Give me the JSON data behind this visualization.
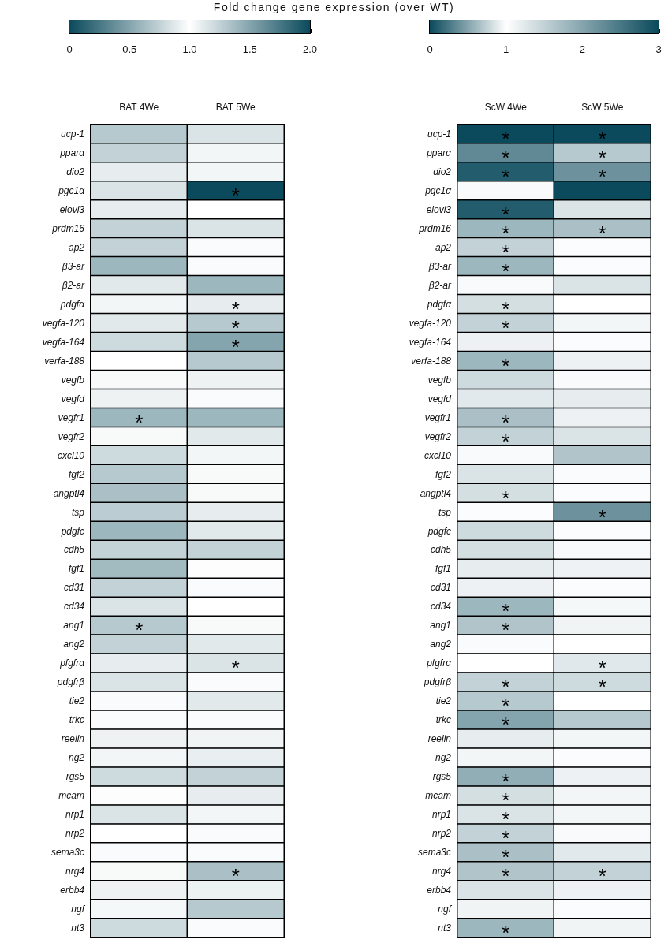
{
  "chart_data": [
    {
      "type": "heatmap",
      "title": "Fold change gene expression (over WT)",
      "categories": [
        "BAT 4We",
        "BAT 5We"
      ],
      "y_categories": [
        "ucp-1",
        "pparα",
        "dio2",
        "pgc1α",
        "elovl3",
        "prdm16",
        "ap2",
        "β3-ar",
        "β2-ar",
        "pdgfα",
        "vegfa-120",
        "vegfa-164",
        "verfa-188",
        "vegfb",
        "vegfd",
        "vegfr1",
        "vegfr2",
        "cxcl10",
        "fgf2",
        "angptl4",
        "tsp",
        "pdgfc",
        "cdh5",
        "fgf1",
        "cd31",
        "cd34",
        "ang1",
        "ang2",
        "pfgfrα",
        "pdgfrβ",
        "tie2",
        "trkc",
        "reelin",
        "ng2",
        "rgs5",
        "mcam",
        "nrp1",
        "nrp2",
        "sema3c",
        "nrg4",
        "erbb4",
        "ngf",
        "nt3"
      ],
      "cells": [
        [
          1.3,
          1.15
        ],
        [
          1.25,
          0.95
        ],
        [
          0.9,
          0.95
        ],
        [
          1.15,
          2.0
        ],
        [
          0.9,
          1.0
        ],
        [
          1.25,
          1.15
        ],
        [
          1.25,
          0.98
        ],
        [
          1.4,
          1.02
        ],
        [
          1.12,
          1.4
        ],
        [
          0.95,
          0.9
        ],
        [
          1.12,
          1.3
        ],
        [
          1.2,
          1.5
        ],
        [
          1.0,
          1.3
        ],
        [
          1.03,
          0.93
        ],
        [
          1.07,
          1.02
        ],
        [
          1.4,
          1.4
        ],
        [
          0.97,
          1.12
        ],
        [
          1.2,
          0.95
        ],
        [
          1.3,
          1.03
        ],
        [
          1.35,
          1.03
        ],
        [
          1.28,
          0.9
        ],
        [
          1.4,
          0.88
        ],
        [
          1.25,
          1.25
        ],
        [
          1.38,
          0.99
        ],
        [
          1.25,
          0.98
        ],
        [
          1.15,
          1.0
        ],
        [
          1.3,
          0.97
        ],
        [
          1.25,
          1.12
        ],
        [
          0.9,
          0.85
        ],
        [
          1.15,
          0.98
        ],
        [
          0.98,
          1.12
        ],
        [
          0.98,
          0.98
        ],
        [
          1.07,
          0.94
        ],
        [
          1.05,
          0.91
        ],
        [
          1.2,
          1.25
        ],
        [
          0.99,
          0.9
        ],
        [
          1.15,
          1.05
        ],
        [
          1.0,
          0.98
        ],
        [
          1.02,
          0.98
        ],
        [
          1.03,
          1.35
        ],
        [
          0.93,
          0.92
        ],
        [
          0.96,
          1.3
        ],
        [
          1.2,
          1.02
        ]
      ],
      "cell_labels": [
        [
          null,
          null
        ],
        [
          null,
          null
        ],
        [
          null,
          null
        ],
        [
          null,
          "*"
        ],
        [
          null,
          null
        ],
        [
          null,
          null
        ],
        [
          null,
          null
        ],
        [
          null,
          null
        ],
        [
          null,
          null
        ],
        [
          null,
          "*"
        ],
        [
          null,
          "*"
        ],
        [
          null,
          "*"
        ],
        [
          null,
          null
        ],
        [
          null,
          null
        ],
        [
          null,
          null
        ],
        [
          "*",
          null
        ],
        [
          null,
          null
        ],
        [
          null,
          null
        ],
        [
          null,
          null
        ],
        [
          null,
          null
        ],
        [
          null,
          null
        ],
        [
          null,
          null
        ],
        [
          null,
          null
        ],
        [
          null,
          null
        ],
        [
          null,
          null
        ],
        [
          null,
          null
        ],
        [
          "*",
          null
        ],
        [
          null,
          null
        ],
        [
          null,
          "*"
        ],
        [
          null,
          null
        ],
        [
          null,
          null
        ],
        [
          null,
          null
        ],
        [
          null,
          null
        ],
        [
          null,
          null
        ],
        [
          null,
          null
        ],
        [
          null,
          null
        ],
        [
          null,
          null
        ],
        [
          null,
          null
        ],
        [
          null,
          null
        ],
        [
          null,
          "*"
        ],
        [
          null,
          null
        ],
        [
          null,
          null
        ],
        [
          null,
          null
        ]
      ],
      "clim": [
        0,
        2
      ],
      "cticks": [
        0,
        0.5,
        {
          "value": 1,
          "label": "1.0"
        },
        1.5,
        {
          "value": 2,
          "label": "2.0"
        }
      ]
    },
    {
      "type": "heatmap",
      "categories": [
        "ScW 4We",
        "ScW 5We"
      ],
      "y_categories": [
        "ucp-1",
        "pparα",
        "dio2",
        "pgc1α",
        "elovl3",
        "prdm16",
        "ap2",
        "β3-ar",
        "β2-ar",
        "pdgfα",
        "vegfa-120",
        "vegfa-164",
        "verfa-188",
        "vegfb",
        "vegfd",
        "vegfr1",
        "vegfr2",
        "cxcl10",
        "fgf2",
        "angptl4",
        "tsp",
        "pdgfc",
        "cdh5",
        "fgf1",
        "cd31",
        "cd34",
        "ang1",
        "ang2",
        "pfgfrα",
        "pdgfrβ",
        "tie2",
        "trkc",
        "reelin",
        "ng2",
        "rgs5",
        "mcam",
        "nrp1",
        "nrp2",
        "sema3c",
        "nrg4",
        "erbb4",
        "ngf",
        "nt3"
      ],
      "cells": [
        [
          3.0,
          3.0
        ],
        [
          2.3,
          1.6
        ],
        [
          2.8,
          2.2
        ],
        [
          1.05,
          3.0
        ],
        [
          2.8,
          0.85
        ],
        [
          1.8,
          1.7
        ],
        [
          1.5,
          1.03
        ],
        [
          1.8,
          1.03
        ],
        [
          1.05,
          0.85
        ],
        [
          1.35,
          1.0
        ],
        [
          1.5,
          1.1
        ],
        [
          1.15,
          1.03
        ],
        [
          1.8,
          1.15
        ],
        [
          1.4,
          1.05
        ],
        [
          0.88,
          1.2
        ],
        [
          1.7,
          1.15
        ],
        [
          1.5,
          1.3
        ],
        [
          1.05,
          1.65
        ],
        [
          1.3,
          0.98
        ],
        [
          1.35,
          1.03
        ],
        [
          1.03,
          2.2
        ],
        [
          0.8,
          1.03
        ],
        [
          1.35,
          0.97
        ],
        [
          1.2,
          0.93
        ],
        [
          1.15,
          1.03
        ],
        [
          1.8,
          1.08
        ],
        [
          1.65,
          1.12
        ],
        [
          1.04,
          1.0
        ],
        [
          1.0,
          1.25
        ],
        [
          1.5,
          1.4
        ],
        [
          1.6,
          1.0
        ],
        [
          2.0,
          1.6
        ],
        [
          0.9,
          0.95
        ],
        [
          1.1,
          1.03
        ],
        [
          1.9,
          1.15
        ],
        [
          1.35,
          0.95
        ],
        [
          1.3,
          1.1
        ],
        [
          1.5,
          1.05
        ],
        [
          1.7,
          0.88
        ],
        [
          1.65,
          1.5
        ],
        [
          1.3,
          1.15
        ],
        [
          1.12,
          1.03
        ],
        [
          1.8,
          1.12
        ]
      ],
      "cell_labels": [
        [
          "*",
          "*"
        ],
        [
          "*",
          "*"
        ],
        [
          "*",
          "*"
        ],
        [
          null,
          null
        ],
        [
          "*",
          null
        ],
        [
          "*",
          "*"
        ],
        [
          "*",
          null
        ],
        [
          "*",
          null
        ],
        [
          null,
          null
        ],
        [
          "*",
          null
        ],
        [
          "*",
          null
        ],
        [
          null,
          null
        ],
        [
          "*",
          null
        ],
        [
          null,
          null
        ],
        [
          null,
          null
        ],
        [
          "*",
          null
        ],
        [
          "*",
          null
        ],
        [
          null,
          null
        ],
        [
          null,
          null
        ],
        [
          "*",
          null
        ],
        [
          null,
          "*"
        ],
        [
          null,
          null
        ],
        [
          null,
          null
        ],
        [
          null,
          null
        ],
        [
          null,
          null
        ],
        [
          "*",
          null
        ],
        [
          "*",
          null
        ],
        [
          null,
          null
        ],
        [
          null,
          "*"
        ],
        [
          "*",
          "*"
        ],
        [
          "*",
          null
        ],
        [
          "*",
          null
        ],
        [
          null,
          null
        ],
        [
          null,
          null
        ],
        [
          "*",
          null
        ],
        [
          "*",
          null
        ],
        [
          "*",
          null
        ],
        [
          "*",
          null
        ],
        [
          "*",
          null
        ],
        [
          "*",
          "*"
        ],
        [
          null,
          null
        ],
        [
          null,
          null
        ],
        [
          "*",
          null
        ]
      ],
      "clim": [
        0,
        3
      ],
      "cticks": [
        0,
        1,
        2,
        3
      ]
    }
  ]
}
